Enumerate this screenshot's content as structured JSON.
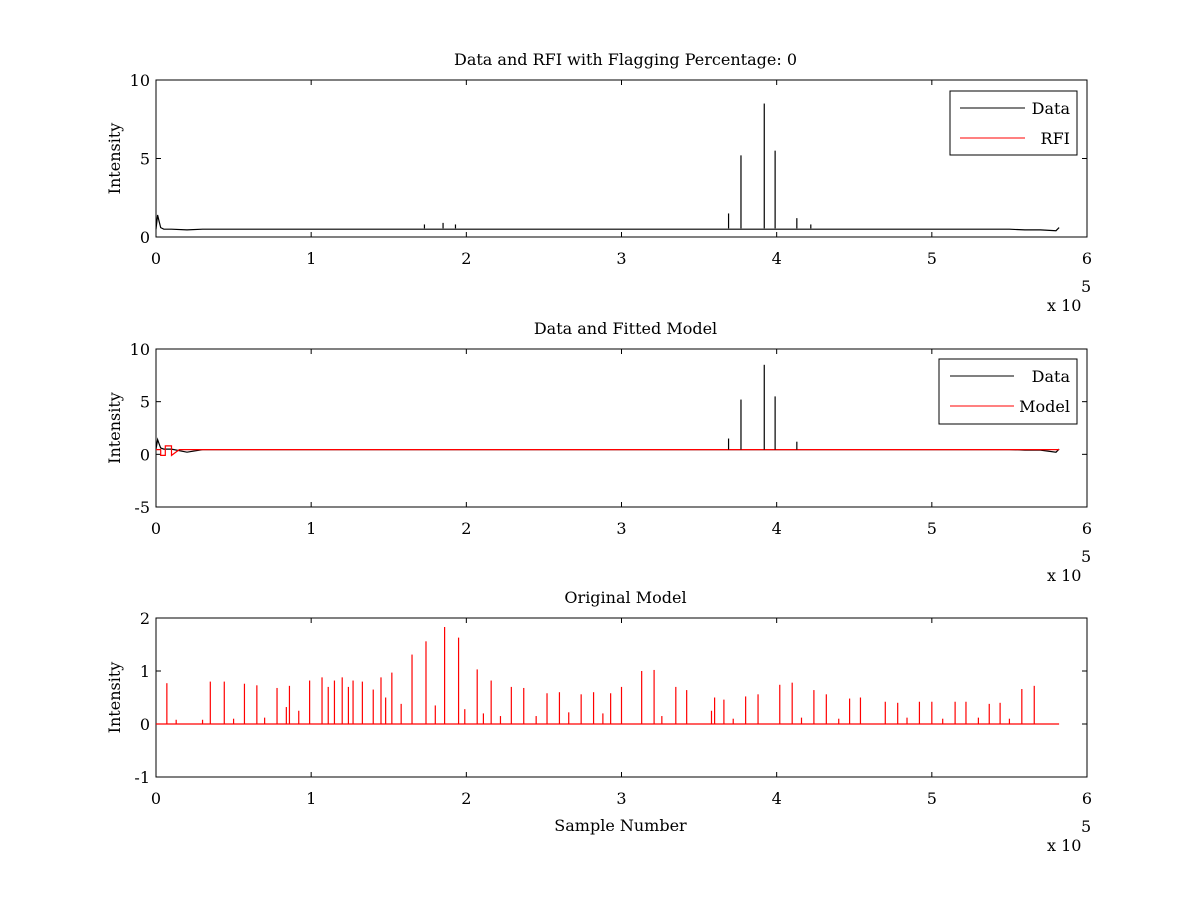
{
  "chart_data": [
    {
      "type": "line",
      "title": "Data and RFI with Flagging Percentage: 0",
      "xlabel": "",
      "ylabel": "Intensity",
      "x_exponent_label": "x 10",
      "x_exponent": "5",
      "xlim": [
        0,
        6
      ],
      "ylim": [
        0,
        10
      ],
      "xticks": [
        "0",
        "1",
        "2",
        "3",
        "4",
        "5",
        "6"
      ],
      "yticks": [
        "0",
        "5",
        "10"
      ],
      "legend_position": "top-right",
      "baseline": 0.55,
      "series": [
        {
          "name": "Data",
          "color": "#000000",
          "x": [
            0,
            0.01,
            0.02,
            0.03,
            0.05,
            0.1,
            0.2,
            0.3,
            0.5,
            1.0,
            1.5,
            2.0,
            2.5,
            3.0,
            3.5,
            4.0,
            4.5,
            5.0,
            5.5,
            5.6,
            5.7,
            5.8,
            5.82
          ],
          "y": [
            0.5,
            1.4,
            1.0,
            0.6,
            0.5,
            0.5,
            0.45,
            0.5,
            0.5,
            0.5,
            0.5,
            0.5,
            0.5,
            0.5,
            0.5,
            0.5,
            0.5,
            0.5,
            0.5,
            0.45,
            0.45,
            0.4,
            0.6
          ]
        },
        {
          "name": "RFI",
          "color": "#ff0000",
          "x": [
            0.4
          ],
          "y": [
            0.6
          ]
        }
      ],
      "spikes": [
        {
          "x": 3.69,
          "y": 1.5
        },
        {
          "x": 3.77,
          "y": 5.2
        },
        {
          "x": 3.92,
          "y": 8.5
        },
        {
          "x": 3.99,
          "y": 5.5
        },
        {
          "x": 4.13,
          "y": 1.2
        },
        {
          "x": 1.73,
          "y": 0.8
        },
        {
          "x": 1.85,
          "y": 0.9
        },
        {
          "x": 1.93,
          "y": 0.8
        },
        {
          "x": 4.22,
          "y": 0.8
        }
      ]
    },
    {
      "type": "line",
      "title": "Data and Fitted Model",
      "xlabel": "",
      "ylabel": "Intensity",
      "x_exponent_label": "x 10",
      "x_exponent": "5",
      "xlim": [
        0,
        6
      ],
      "ylim": [
        -5,
        10
      ],
      "xticks": [
        "0",
        "1",
        "2",
        "3",
        "4",
        "5",
        "6"
      ],
      "yticks": [
        "-5",
        "0",
        "5",
        "10"
      ],
      "legend_position": "top-right",
      "baseline": 0.45,
      "series": [
        {
          "name": "Data",
          "color": "#000000",
          "x": [
            0,
            0.01,
            0.02,
            0.03,
            0.05,
            0.1,
            0.2,
            0.3,
            0.5,
            1.0,
            1.5,
            2.0,
            2.5,
            3.0,
            3.5,
            4.0,
            4.5,
            5.0,
            5.5,
            5.6,
            5.7,
            5.8,
            5.82
          ],
          "y": [
            0.5,
            1.4,
            1.0,
            0.6,
            0.5,
            0.5,
            0.2,
            0.45,
            0.45,
            0.45,
            0.45,
            0.45,
            0.45,
            0.45,
            0.45,
            0.45,
            0.45,
            0.45,
            0.45,
            0.4,
            0.4,
            0.2,
            0.5
          ]
        },
        {
          "name": "Model",
          "color": "#ff0000",
          "x": [
            0,
            0.03,
            0.03,
            0.06,
            0.06,
            0.1,
            0.1,
            0.15,
            5.82
          ],
          "y": [
            0.45,
            0.45,
            -0.1,
            -0.1,
            0.8,
            0.8,
            -0.1,
            0.45,
            0.45
          ]
        }
      ],
      "spikes": [
        {
          "x": 3.69,
          "y": 1.5
        },
        {
          "x": 3.77,
          "y": 5.2
        },
        {
          "x": 3.92,
          "y": 8.5
        },
        {
          "x": 3.99,
          "y": 5.5
        },
        {
          "x": 4.13,
          "y": 1.2
        }
      ]
    },
    {
      "type": "line",
      "title": "Original Model",
      "xlabel": "Sample Number",
      "ylabel": "Intensity",
      "x_exponent_label": "x 10",
      "x_exponent": "5",
      "xlim": [
        0,
        6
      ],
      "ylim": [
        -1,
        2
      ],
      "xticks": [
        "0",
        "1",
        "2",
        "3",
        "4",
        "5",
        "6"
      ],
      "yticks": [
        "-1",
        "0",
        "1",
        "2"
      ],
      "baseline": 0,
      "series": [
        {
          "name": "",
          "color": "#ff0000",
          "x": [
            0,
            5.82
          ],
          "y": [
            0,
            0
          ]
        }
      ],
      "spikes": [
        {
          "x": 0.07,
          "y": 0.77
        },
        {
          "x": 0.35,
          "y": 0.8
        },
        {
          "x": 0.44,
          "y": 0.8
        },
        {
          "x": 0.57,
          "y": 0.76
        },
        {
          "x": 0.65,
          "y": 0.73
        },
        {
          "x": 0.78,
          "y": 0.68
        },
        {
          "x": 0.86,
          "y": 0.72
        },
        {
          "x": 0.99,
          "y": 0.82
        },
        {
          "x": 1.07,
          "y": 0.88
        },
        {
          "x": 1.15,
          "y": 0.82
        },
        {
          "x": 1.2,
          "y": 0.88
        },
        {
          "x": 1.27,
          "y": 0.82
        },
        {
          "x": 1.33,
          "y": 0.8
        },
        {
          "x": 1.4,
          "y": 0.65
        },
        {
          "x": 1.45,
          "y": 0.88
        },
        {
          "x": 1.52,
          "y": 0.97
        },
        {
          "x": 1.65,
          "y": 1.31
        },
        {
          "x": 1.74,
          "y": 1.56
        },
        {
          "x": 1.86,
          "y": 1.83
        },
        {
          "x": 1.95,
          "y": 1.63
        },
        {
          "x": 2.07,
          "y": 1.03
        },
        {
          "x": 2.16,
          "y": 0.82
        },
        {
          "x": 2.29,
          "y": 0.7
        },
        {
          "x": 2.37,
          "y": 0.68
        },
        {
          "x": 2.52,
          "y": 0.58
        },
        {
          "x": 2.6,
          "y": 0.6
        },
        {
          "x": 2.74,
          "y": 0.56
        },
        {
          "x": 2.82,
          "y": 0.6
        },
        {
          "x": 2.93,
          "y": 0.58
        },
        {
          "x": 3.0,
          "y": 0.7
        },
        {
          "x": 3.13,
          "y": 1.0
        },
        {
          "x": 3.21,
          "y": 1.02
        },
        {
          "x": 3.35,
          "y": 0.7
        },
        {
          "x": 3.42,
          "y": 0.64
        },
        {
          "x": 3.6,
          "y": 0.5
        },
        {
          "x": 3.66,
          "y": 0.46
        },
        {
          "x": 3.8,
          "y": 0.52
        },
        {
          "x": 3.88,
          "y": 0.56
        },
        {
          "x": 4.02,
          "y": 0.74
        },
        {
          "x": 4.1,
          "y": 0.78
        },
        {
          "x": 4.24,
          "y": 0.64
        },
        {
          "x": 4.32,
          "y": 0.56
        },
        {
          "x": 4.47,
          "y": 0.48
        },
        {
          "x": 4.54,
          "y": 0.5
        },
        {
          "x": 4.7,
          "y": 0.42
        },
        {
          "x": 4.78,
          "y": 0.4
        },
        {
          "x": 4.92,
          "y": 0.42
        },
        {
          "x": 5.0,
          "y": 0.42
        },
        {
          "x": 5.15,
          "y": 0.42
        },
        {
          "x": 5.22,
          "y": 0.42
        },
        {
          "x": 5.37,
          "y": 0.38
        },
        {
          "x": 5.44,
          "y": 0.4
        },
        {
          "x": 5.58,
          "y": 0.66
        },
        {
          "x": 5.66,
          "y": 0.72
        },
        {
          "x": 0.13,
          "y": 0.08
        },
        {
          "x": 0.3,
          "y": 0.08
        },
        {
          "x": 0.5,
          "y": 0.1
        },
        {
          "x": 0.7,
          "y": 0.12
        },
        {
          "x": 0.84,
          "y": 0.32
        },
        {
          "x": 0.92,
          "y": 0.25
        },
        {
          "x": 1.11,
          "y": 0.7
        },
        {
          "x": 1.24,
          "y": 0.7
        },
        {
          "x": 1.48,
          "y": 0.5
        },
        {
          "x": 1.58,
          "y": 0.38
        },
        {
          "x": 1.8,
          "y": 0.35
        },
        {
          "x": 1.99,
          "y": 0.28
        },
        {
          "x": 2.11,
          "y": 0.2
        },
        {
          "x": 2.22,
          "y": 0.15
        },
        {
          "x": 2.45,
          "y": 0.15
        },
        {
          "x": 2.66,
          "y": 0.22
        },
        {
          "x": 2.88,
          "y": 0.2
        },
        {
          "x": 3.26,
          "y": 0.15
        },
        {
          "x": 3.58,
          "y": 0.25
        },
        {
          "x": 3.72,
          "y": 0.1
        },
        {
          "x": 4.16,
          "y": 0.12
        },
        {
          "x": 4.4,
          "y": 0.1
        },
        {
          "x": 4.84,
          "y": 0.12
        },
        {
          "x": 5.07,
          "y": 0.1
        },
        {
          "x": 5.3,
          "y": 0.12
        },
        {
          "x": 5.5,
          "y": 0.1
        }
      ]
    }
  ]
}
